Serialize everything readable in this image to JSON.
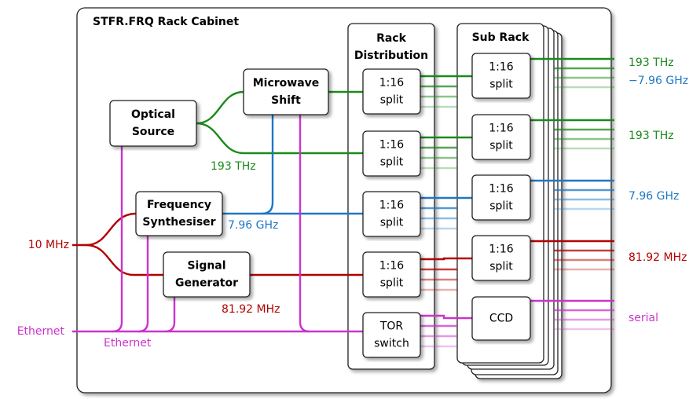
{
  "cabinet": {
    "title": "STFR.FRQ Rack Cabinet"
  },
  "columns": [
    {
      "lines": [
        "Rack",
        "Distribution"
      ]
    },
    {
      "lines": [
        "Sub Rack"
      ]
    }
  ],
  "nodes": [
    {
      "lines": [
        "Optical",
        "Source"
      ]
    },
    {
      "lines": [
        "Microwave",
        "Shift"
      ]
    },
    {
      "lines": [
        "Frequency",
        "Synthesiser"
      ]
    },
    {
      "lines": [
        "Signal",
        "Generator"
      ]
    },
    {
      "lines": [
        "1:16",
        "split"
      ]
    },
    {
      "lines": [
        "1:16",
        "split"
      ]
    },
    {
      "lines": [
        "1:16",
        "split"
      ]
    },
    {
      "lines": [
        "1:16",
        "split"
      ]
    },
    {
      "lines": [
        "TOR",
        "switch"
      ]
    },
    {
      "lines": [
        "1:16",
        "split"
      ]
    },
    {
      "lines": [
        "1:16",
        "split"
      ]
    },
    {
      "lines": [
        "1:16",
        "split"
      ]
    },
    {
      "lines": [
        "1:16",
        "split"
      ]
    },
    {
      "lines": [
        "CCD"
      ]
    }
  ],
  "signals": {
    "inputs": [
      "10 MHz",
      "Ethernet"
    ],
    "internal": [
      "193 THz",
      "7.96 GHz",
      "81.92 MHz",
      "Ethernet"
    ],
    "outputs": [
      "193 THz",
      "−7.96 GHz",
      "193 THz",
      "7.96 GHz",
      "81.92 MHz",
      "serial"
    ]
  }
}
